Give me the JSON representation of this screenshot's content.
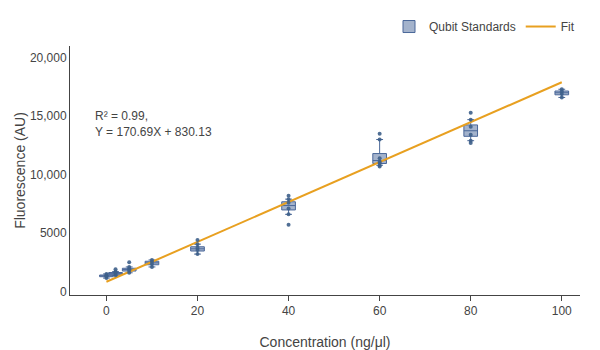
{
  "chart_data": {
    "type": "box",
    "xlabel": "Concentration (ng/μl)",
    "ylabel": "Fluorescence (AU)",
    "annotations": [
      {
        "text": "R² = 0.99,\nY = 170.69X + 830.13",
        "x": -3,
        "y": 15800
      }
    ],
    "xlim": [
      -8,
      104
    ],
    "ylim": [
      -300,
      21000
    ],
    "xticks": [
      0,
      20,
      40,
      60,
      80,
      100
    ],
    "yticks": [
      0,
      5000,
      {
        "value": 10000,
        "label": "10,000"
      },
      {
        "value": 15000,
        "label": "15,000"
      },
      {
        "value": 20000,
        "label": "20,000"
      }
    ],
    "grid": false,
    "legend": "upper right",
    "series": [
      {
        "name": "Qubit Standards",
        "type": "box",
        "color": "#4a6799",
        "x": [
          0,
          2,
          5,
          10,
          20,
          40,
          60,
          80,
          100
        ],
        "q1": [
          1262.5,
          1470,
          1750,
          2287.5,
          3462.5,
          6975,
          10950,
          13275,
          16825
        ],
        "median": [
          1340,
          1550,
          1875,
          2450,
          3650,
          7350,
          11200,
          13750,
          17000
        ],
        "q3": [
          1410,
          1625,
          1987.5,
          2587.5,
          3825,
          7675,
          11800,
          14250,
          17150
        ],
        "whisker_low": [
          1150,
          1380,
          1600,
          2100,
          3200,
          6600,
          10800,
          12900,
          16600
        ],
        "whisker_high": [
          1500,
          1700,
          2100,
          2700,
          4050,
          7900,
          13000,
          14700,
          17300
        ]
      },
      {
        "name": "Fit",
        "type": "line",
        "color": "#E8A020",
        "x": [
          0,
          100
        ],
        "values": [
          830.13,
          17899.13
        ]
      },
      {
        "type": "scatter",
        "color": "#3d5f8a",
        "x": [
          0,
          0,
          0,
          0,
          2,
          2,
          2,
          2,
          2,
          5,
          5,
          5,
          5,
          5,
          10,
          10,
          10,
          10,
          20,
          20,
          20,
          20,
          20,
          40,
          40,
          40,
          40,
          40,
          40,
          60,
          60,
          60,
          60,
          60,
          60,
          60,
          80,
          80,
          80,
          80,
          80,
          80,
          100,
          100,
          100,
          100
        ],
        "values": [
          1150,
          1300,
          1380,
          1500,
          1380,
          1500,
          1600,
          1700,
          1900,
          1600,
          1800,
          1950,
          2100,
          2500,
          2100,
          2350,
          2550,
          2700,
          3200,
          3550,
          3750,
          4050,
          4400,
          6600,
          7100,
          7600,
          7900,
          5700,
          8200,
          10800,
          11000,
          11400,
          13000,
          10700,
          11100,
          13500,
          12900,
          13400,
          14100,
          14700,
          12700,
          15300,
          16600,
          16900,
          17100,
          17300
        ]
      }
    ]
  }
}
